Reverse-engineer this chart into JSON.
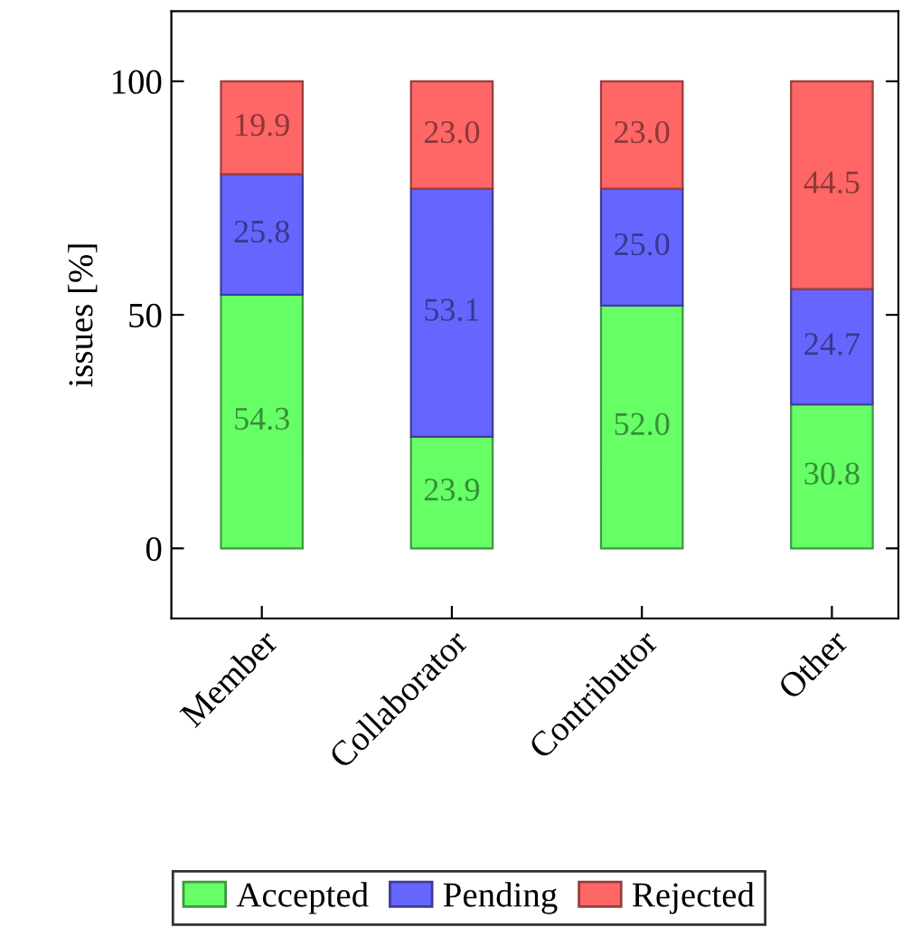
{
  "chart_data": {
    "type": "bar",
    "stacked": true,
    "ylabel": "issues [%]",
    "categories": [
      "Member",
      "Collaborator",
      "Contributor",
      "Other"
    ],
    "series": [
      {
        "name": "Accepted",
        "color": "#66ff66",
        "values": [
          54.3,
          23.9,
          52.0,
          30.8
        ],
        "value_labels": [
          "54.3",
          "23.9",
          "52.0",
          "30.8"
        ]
      },
      {
        "name": "Pending",
        "color": "#6666ff",
        "values": [
          25.8,
          53.1,
          25.0,
          24.7
        ],
        "value_labels": [
          "25.8",
          "53.1",
          "25.0",
          "24.7"
        ]
      },
      {
        "name": "Rejected",
        "color": "#ff6666",
        "values": [
          19.9,
          23.0,
          23.0,
          44.5
        ],
        "value_labels": [
          "19.9",
          "23.0",
          "23.0",
          "44.5"
        ]
      }
    ],
    "ylim": [
      -15,
      115
    ],
    "yticks": [
      0,
      50,
      100
    ],
    "legend": "bottom",
    "grid": false
  }
}
